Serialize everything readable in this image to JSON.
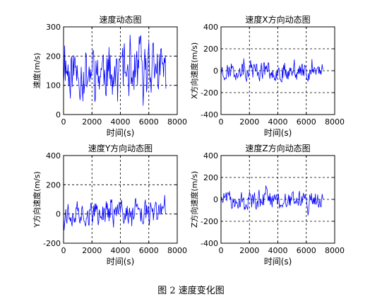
{
  "figure_caption": "图 2  速度变化图",
  "chart_data": [
    {
      "type": "line",
      "title": "速度动态图",
      "xlabel": "时间(s)",
      "ylabel": "速度(m/s)",
      "xlim": [
        0,
        8000
      ],
      "ylim": [
        0,
        300
      ],
      "xticks": [
        0,
        2000,
        4000,
        6000,
        8000
      ],
      "yticks": [
        0,
        100,
        200,
        300
      ],
      "grid": true,
      "series": [
        {
          "color": "#0000ff",
          "x_range": [
            0,
            7200
          ],
          "seed": 11,
          "center": 150,
          "amplitude": 125,
          "clip": [
            5,
            290
          ],
          "step": 40
        }
      ]
    },
    {
      "type": "line",
      "title": "速度X方向动态图",
      "xlabel": "时间(s)",
      "ylabel": "X方向速度(m/s)",
      "xlim": [
        0,
        8000
      ],
      "ylim": [
        -400,
        400
      ],
      "xticks": [
        0,
        2000,
        4000,
        6000,
        8000
      ],
      "yticks": [
        -400,
        -200,
        0,
        200,
        400
      ],
      "grid": true,
      "series": [
        {
          "color": "#0000ff",
          "x_range": [
            0,
            7200
          ],
          "seed": 23,
          "center": 0,
          "amplitude": 120,
          "clip": [
            -250,
            240
          ],
          "step": 40
        }
      ]
    },
    {
      "type": "line",
      "title": "速度Y方向动态图",
      "xlabel": "时间(s)",
      "ylabel": "Y方向速度(m/s)",
      "xlim": [
        0,
        8000
      ],
      "ylim": [
        -200,
        400
      ],
      "xticks": [
        0,
        2000,
        4000,
        6000,
        8000
      ],
      "yticks": [
        -200,
        0,
        200,
        400
      ],
      "grid": true,
      "series": [
        {
          "color": "#0000ff",
          "x_range": [
            0,
            7200
          ],
          "seed": 37,
          "center": 10,
          "amplitude": 110,
          "clip": [
            -190,
            210
          ],
          "step": 40
        }
      ]
    },
    {
      "type": "line",
      "title": "速度Z方向动态图",
      "xlabel": "时间(s)",
      "ylabel": "Z方向速度(m/s)",
      "xlim": [
        0,
        8000
      ],
      "ylim": [
        -400,
        400
      ],
      "xticks": [
        0,
        2000,
        4000,
        6000,
        8000
      ],
      "yticks": [
        -400,
        -200,
        0,
        200,
        400
      ],
      "grid": true,
      "series": [
        {
          "color": "#0000ff",
          "x_range": [
            0,
            7200
          ],
          "seed": 51,
          "center": 0,
          "amplitude": 110,
          "clip": [
            -200,
            210
          ],
          "step": 40
        }
      ]
    }
  ]
}
